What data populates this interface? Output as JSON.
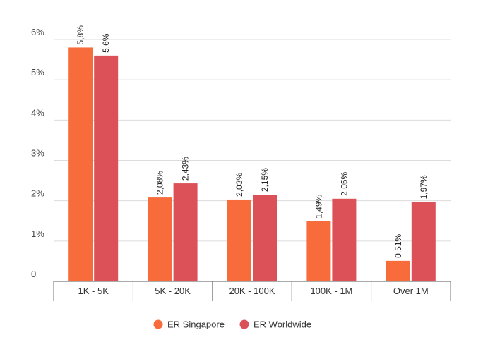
{
  "chart_data": {
    "type": "bar",
    "title": "",
    "xlabel": "",
    "ylabel": "",
    "categories": [
      "1K - 5K",
      "5K - 20K",
      "20K - 100K",
      "100K - 1M",
      "Over 1M"
    ],
    "series": [
      {
        "name": "ER Singapore",
        "color": "#f86b3a",
        "values": [
          5.8,
          2.08,
          2.03,
          1.49,
          0.51
        ],
        "labels": [
          "5,8%",
          "2,08%",
          "2,03%",
          "1,49%",
          "0,51%"
        ]
      },
      {
        "name": "ER Worldwide",
        "color": "#dc5057",
        "values": [
          5.6,
          2.43,
          2.15,
          2.05,
          1.97
        ],
        "labels": [
          "5,6%",
          "2,43%",
          "2,15%",
          "2,05%",
          "1,97%"
        ]
      }
    ],
    "ylim": [
      0,
      6
    ],
    "yticks": [
      0,
      1,
      2,
      3,
      4,
      5,
      6
    ],
    "ytick_labels": [
      "0",
      "1%",
      "2%",
      "3%",
      "4%",
      "5%",
      "6%"
    ],
    "grid": true,
    "legend": "bottom-center"
  }
}
